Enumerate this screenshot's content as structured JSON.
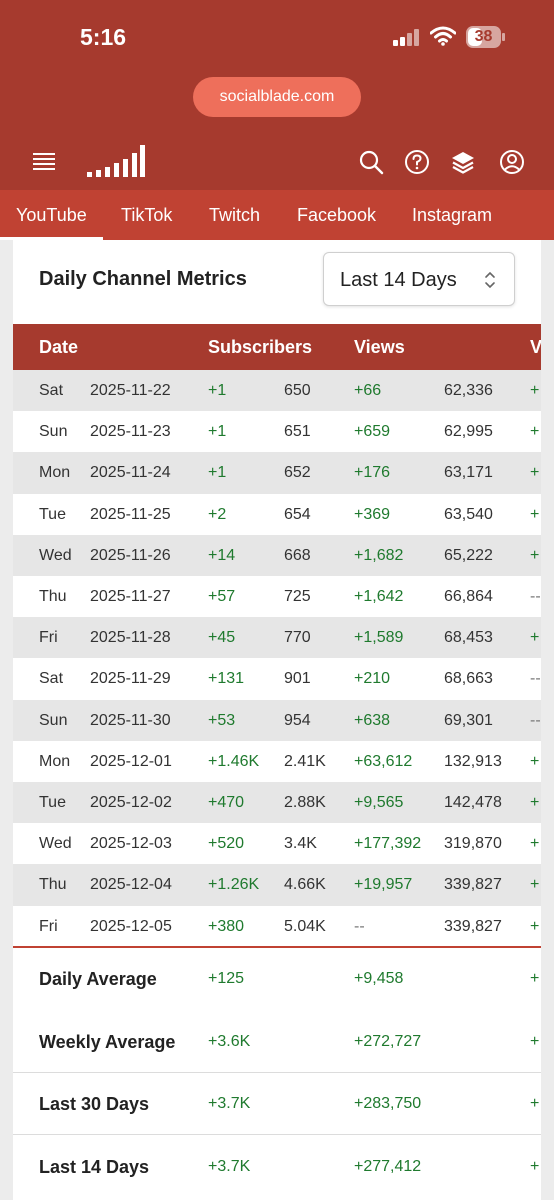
{
  "status_bar": {
    "time": "5:16",
    "battery": "38"
  },
  "browser": {
    "url": "socialblade.com"
  },
  "header": {
    "icons": [
      "menu-icon",
      "socialblade-logo",
      "search-icon",
      "help-icon",
      "layers-icon",
      "account-icon"
    ]
  },
  "tabs": [
    {
      "label": "YouTube",
      "active": true
    },
    {
      "label": "TikTok",
      "active": false
    },
    {
      "label": "Twitch",
      "active": false
    },
    {
      "label": "Facebook",
      "active": false
    },
    {
      "label": "Instagram",
      "active": false
    }
  ],
  "card": {
    "title": "Daily Channel Metrics",
    "range": "Last 14 Days"
  },
  "table": {
    "headers": {
      "date": "Date",
      "subscribers": "Subscribers",
      "views": "Views",
      "truncated": "V"
    },
    "rows": [
      {
        "day": "Sat",
        "date": "2025-11-22",
        "sub_change": "+1",
        "subs": "650",
        "view_change": "+66",
        "views": "62,336",
        "more": "+"
      },
      {
        "day": "Sun",
        "date": "2025-11-23",
        "sub_change": "+1",
        "subs": "651",
        "view_change": "+659",
        "views": "62,995",
        "more": "+"
      },
      {
        "day": "Mon",
        "date": "2025-11-24",
        "sub_change": "+1",
        "subs": "652",
        "view_change": "+176",
        "views": "63,171",
        "more": "+"
      },
      {
        "day": "Tue",
        "date": "2025-11-25",
        "sub_change": "+2",
        "subs": "654",
        "view_change": "+369",
        "views": "63,540",
        "more": "+"
      },
      {
        "day": "Wed",
        "date": "2025-11-26",
        "sub_change": "+14",
        "subs": "668",
        "view_change": "+1,682",
        "views": "65,222",
        "more": "+"
      },
      {
        "day": "Thu",
        "date": "2025-11-27",
        "sub_change": "+57",
        "subs": "725",
        "view_change": "+1,642",
        "views": "66,864",
        "more": "--"
      },
      {
        "day": "Fri",
        "date": "2025-11-28",
        "sub_change": "+45",
        "subs": "770",
        "view_change": "+1,589",
        "views": "68,453",
        "more": "+"
      },
      {
        "day": "Sat",
        "date": "2025-11-29",
        "sub_change": "+131",
        "subs": "901",
        "view_change": "+210",
        "views": "68,663",
        "more": "--"
      },
      {
        "day": "Sun",
        "date": "2025-11-30",
        "sub_change": "+53",
        "subs": "954",
        "view_change": "+638",
        "views": "69,301",
        "more": "--"
      },
      {
        "day": "Mon",
        "date": "2025-12-01",
        "sub_change": "+1.46K",
        "subs": "2.41K",
        "view_change": "+63,612",
        "views": "132,913",
        "more": "+"
      },
      {
        "day": "Tue",
        "date": "2025-12-02",
        "sub_change": "+470",
        "subs": "2.88K",
        "view_change": "+9,565",
        "views": "142,478",
        "more": "+"
      },
      {
        "day": "Wed",
        "date": "2025-12-03",
        "sub_change": "+520",
        "subs": "3.4K",
        "view_change": "+177,392",
        "views": "319,870",
        "more": "+"
      },
      {
        "day": "Thu",
        "date": "2025-12-04",
        "sub_change": "+1.26K",
        "subs": "4.66K",
        "view_change": "+19,957",
        "views": "339,827",
        "more": "+"
      },
      {
        "day": "Fri",
        "date": "2025-12-05",
        "sub_change": "+380",
        "subs": "5.04K",
        "view_change": "--",
        "views": "339,827",
        "more": "+"
      }
    ]
  },
  "summary": [
    {
      "label": "Daily Average",
      "subs": "+125",
      "views": "+9,458",
      "more": "+"
    },
    {
      "label": "Weekly Average",
      "subs": "+3.6K",
      "views": "+272,727",
      "more": "+"
    },
    {
      "label": "Last 30 Days",
      "subs": "+3.7K",
      "views": "+283,750",
      "more": "+"
    },
    {
      "label": "Last 14 Days",
      "subs": "+3.7K",
      "views": "+277,412",
      "more": "+"
    }
  ],
  "colors": {
    "brand": "#a63a2e",
    "tab_bar": "#c04233",
    "positive": "#1f7a2e"
  }
}
